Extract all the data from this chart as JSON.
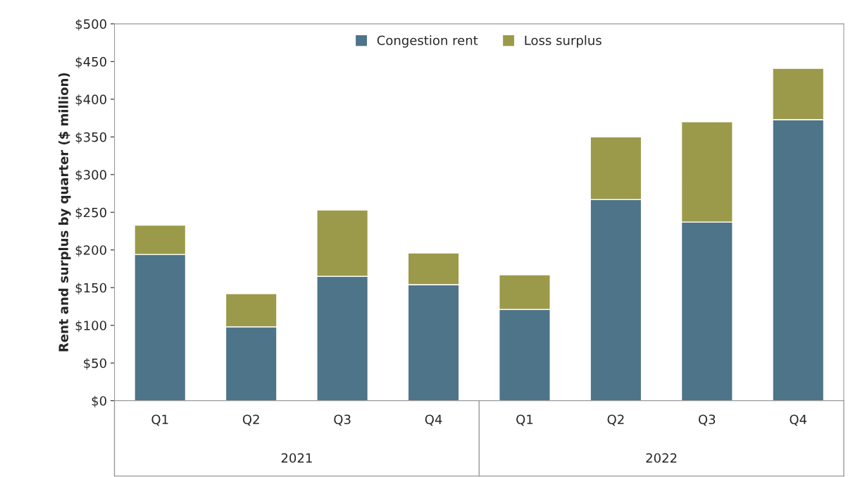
{
  "chart_data": {
    "type": "bar",
    "stacked": true,
    "ylabel": "Rent and surplus by quarter ($ million)",
    "categories": [
      "Q1",
      "Q2",
      "Q3",
      "Q4",
      "Q1",
      "Q2",
      "Q3",
      "Q4"
    ],
    "series": [
      {
        "name": "Congestion rent",
        "color": "#4e7489",
        "values": [
          194,
          98,
          165,
          154,
          121,
          267,
          237,
          373
        ]
      },
      {
        "name": "Loss surplus",
        "color": "#9a9a4a",
        "values": [
          39,
          44,
          88,
          42,
          46,
          83,
          133,
          68
        ]
      }
    ],
    "ylim": [
      0,
      500
    ],
    "yticks": [
      {
        "value": 0,
        "label": "$0"
      },
      {
        "value": 50,
        "label": "$50"
      },
      {
        "value": 100,
        "label": "$100"
      },
      {
        "value": 150,
        "label": "$150"
      },
      {
        "value": 200,
        "label": "$200"
      },
      {
        "value": 250,
        "label": "$250"
      },
      {
        "value": 300,
        "label": "$300"
      },
      {
        "value": 350,
        "label": "$350"
      },
      {
        "value": 400,
        "label": "$400"
      },
      {
        "value": 450,
        "label": "$450"
      },
      {
        "value": 500,
        "label": "$500"
      }
    ],
    "annotations": [
      "2021",
      "2022"
    ],
    "legend": "top",
    "grid": false
  }
}
